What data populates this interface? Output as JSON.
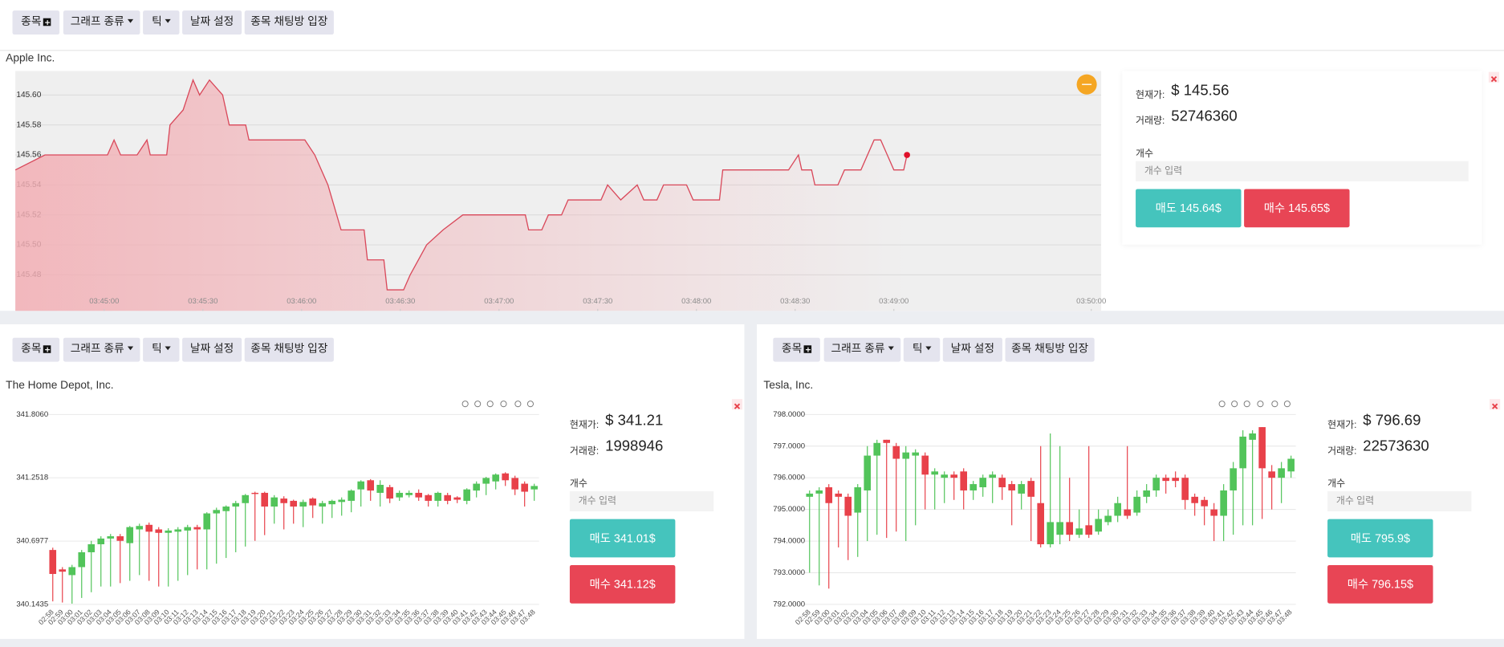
{
  "toolbar": [
    "종목",
    "그래프 종류",
    "틱",
    "날짜 설정",
    "종목 채팅방 입장"
  ],
  "panels": [
    {
      "name": "Apple Inc.",
      "info": {
        "price_label": "현재가:",
        "price": "$ 145.56",
        "volume_label": "거래량:",
        "volume": 52746360,
        "qty_label": "개수",
        "qty_placeholder": "개수 입력",
        "sell": "매도 145.64$",
        "buy": "매수 145.65$"
      }
    },
    {
      "name": "The Home Depot, Inc.",
      "info": {
        "price_label": "현재가:",
        "price": "$ 341.21",
        "volume_label": "거래량:",
        "volume": 1998946,
        "qty_label": "개수",
        "qty_placeholder": "개수 입력",
        "sell": "매도 341.01$",
        "buy": "매수 341.12$"
      }
    },
    {
      "name": "Tesla, Inc.",
      "info": {
        "price_label": "현재가:",
        "price": "$ 796.69",
        "volume_label": "거래량:",
        "volume": 22573630,
        "qty_label": "개수",
        "qty_placeholder": "개수 입력",
        "sell": "매도 795.9$",
        "buy": "매수 796.15$"
      }
    }
  ],
  "chart_data": [
    {
      "type": "line",
      "color": "#d9485a",
      "fill_color": "#f2aeb4",
      "grid": true,
      "x": [
        "03:44:33",
        "03:44:42",
        "03:45:01",
        "03:45:03",
        "03:45:05",
        "03:45:10",
        "03:45:13",
        "03:45:14",
        "03:45:19",
        "03:45:20",
        "03:45:24",
        "03:45:27",
        "03:45:29",
        "03:45:32",
        "03:45:36",
        "03:45:38",
        "03:45:43",
        "03:45:44",
        "03:46:01",
        "03:46:04",
        "03:46:08",
        "03:46:12",
        "03:46:19",
        "03:46:20",
        "03:46:25",
        "03:46:26",
        "03:46:31",
        "03:46:33",
        "03:46:38",
        "03:46:43",
        "03:46:49",
        "03:47:08",
        "03:47:09",
        "03:47:13",
        "03:47:15",
        "03:47:19",
        "03:47:21",
        "03:47:31",
        "03:47:33",
        "03:47:37",
        "03:47:42",
        "03:47:44",
        "03:47:48",
        "03:47:50",
        "03:47:57",
        "03:47:59",
        "03:48:07",
        "03:48:08",
        "03:48:28",
        "03:48:31",
        "03:48:32",
        "03:48:35",
        "03:48:36",
        "03:48:43",
        "03:48:45",
        "03:48:50",
        "03:48:54",
        "03:48:56",
        "03:48:58",
        "03:49:00",
        "03:49:03",
        "03:49:04"
      ],
      "values": [
        145.55,
        145.56,
        145.56,
        145.57,
        145.56,
        145.56,
        145.57,
        145.56,
        145.56,
        145.58,
        145.59,
        145.61,
        145.6,
        145.61,
        145.6,
        145.58,
        145.58,
        145.57,
        145.57,
        145.56,
        145.54,
        145.51,
        145.51,
        145.49,
        145.49,
        145.47,
        145.47,
        145.48,
        145.5,
        145.51,
        145.52,
        145.52,
        145.51,
        145.51,
        145.52,
        145.52,
        145.53,
        145.53,
        145.54,
        145.53,
        145.54,
        145.53,
        145.53,
        145.54,
        145.54,
        145.53,
        145.53,
        145.55,
        145.55,
        145.56,
        145.55,
        145.55,
        145.54,
        145.54,
        145.55,
        145.55,
        145.57,
        145.57,
        145.56,
        145.55,
        145.55,
        145.56
      ],
      "xlim": [
        "03:44:33",
        "03:50:03"
      ],
      "xticks": [
        "03:45:00",
        "03:45:30",
        "03:46:00",
        "03:46:30",
        "03:47:00",
        "03:47:30",
        "03:48:00",
        "03:48:30",
        "03:49:00",
        "03:50:00"
      ],
      "ylim": [
        145.456,
        145.616
      ],
      "yticks": [
        145.48,
        {
          "value": 145.5,
          "label": "145.50"
        },
        145.52,
        145.54,
        145.56,
        145.58,
        {
          "value": 145.6,
          "label": "145.60"
        }
      ]
    },
    {
      "type": "candlestick",
      "up_color": "#52c45a",
      "down_color": "#e8414a",
      "grid": true,
      "categories": [
        "02:58",
        "02:59",
        "03:00",
        "03:01",
        "03:02",
        "03:03",
        "03:04",
        "03:05",
        "03:06",
        "03:07",
        "03:08",
        "03:09",
        "03:10",
        "03:11",
        "03:12",
        "03:13",
        "03:14",
        "03:15",
        "03:16",
        "03:17",
        "03:18",
        "03:19",
        "03:20",
        "03:21",
        "03:22",
        "03:23",
        "03:24",
        "03:25",
        "03:26",
        "03:27",
        "03:28",
        "03:29",
        "03:30",
        "03:31",
        "03:32",
        "03:33",
        "03:34",
        "03:35",
        "03:36",
        "03:37",
        "03:38",
        "03:39",
        "03:40",
        "03:41",
        "03:42",
        "03:43",
        "03:44",
        "03:45",
        "03:46",
        "03:47",
        "03:48"
      ],
      "open": [
        340.62,
        340.45,
        340.4,
        340.47,
        340.6,
        340.67,
        340.72,
        340.74,
        340.68,
        340.8,
        340.84,
        340.8,
        340.77,
        340.78,
        340.79,
        340.82,
        340.8,
        340.94,
        340.96,
        341.0,
        341.03,
        341.12,
        341.12,
        341.0,
        341.07,
        341.05,
        341.0,
        341.07,
        341.0,
        341.02,
        341.04,
        341.05,
        341.15,
        341.23,
        341.12,
        341.17,
        341.08,
        341.1,
        341.12,
        341.1,
        341.05,
        341.1,
        341.08,
        341.05,
        341.14,
        341.2,
        341.22,
        341.29,
        341.25,
        341.2,
        341.15
      ],
      "close": [
        340.41,
        340.43,
        340.47,
        340.6,
        340.67,
        340.72,
        340.74,
        340.7,
        340.82,
        340.83,
        340.78,
        340.77,
        340.79,
        340.8,
        340.82,
        340.8,
        340.94,
        340.97,
        341.0,
        341.03,
        341.1,
        341.11,
        341.0,
        341.08,
        341.03,
        341.0,
        341.04,
        341.01,
        341.03,
        341.05,
        341.06,
        341.14,
        341.22,
        341.14,
        341.19,
        341.07,
        341.12,
        341.12,
        341.08,
        341.05,
        341.12,
        341.05,
        341.06,
        341.15,
        341.2,
        341.25,
        341.28,
        341.23,
        341.15,
        341.13,
        341.18
      ],
      "high": [
        340.64,
        340.47,
        340.49,
        340.62,
        340.7,
        340.74,
        340.76,
        340.76,
        340.83,
        340.85,
        340.86,
        340.82,
        340.81,
        340.82,
        340.84,
        340.84,
        340.95,
        340.99,
        341.01,
        341.05,
        341.11,
        341.13,
        341.13,
        341.1,
        341.09,
        341.06,
        341.06,
        341.08,
        341.05,
        341.06,
        341.08,
        341.15,
        341.23,
        341.24,
        341.23,
        341.19,
        341.14,
        341.14,
        341.15,
        341.11,
        341.13,
        341.12,
        341.09,
        341.16,
        341.22,
        341.26,
        341.29,
        341.3,
        341.27,
        341.22,
        341.2
      ],
      "low": [
        340.17,
        340.16,
        340.15,
        340.2,
        340.25,
        340.3,
        340.3,
        340.33,
        340.35,
        340.4,
        340.35,
        340.3,
        340.3,
        340.35,
        340.4,
        340.45,
        340.45,
        340.5,
        340.55,
        340.6,
        340.65,
        340.7,
        340.75,
        340.85,
        340.8,
        340.85,
        340.82,
        340.9,
        340.85,
        340.9,
        340.92,
        340.95,
        341.0,
        341.05,
        341.0,
        341.03,
        341.05,
        341.08,
        341.05,
        341.0,
        341.0,
        341.02,
        341.03,
        341.02,
        341.08,
        341.1,
        341.15,
        341.18,
        341.1,
        341.0,
        341.05
      ],
      "ylim": [
        340.1435,
        341.806
      ],
      "yticks": [
        340.1435,
        340.6977,
        341.2518,
        {
          "value": 341.806,
          "label": "341.8060"
        }
      ]
    },
    {
      "type": "candlestick",
      "up_color": "#52c45a",
      "down_color": "#e8414a",
      "grid": true,
      "categories": [
        "02:58",
        "02:59",
        "03:00",
        "03:01",
        "03:02",
        "03:03",
        "03:04",
        "03:05",
        "03:06",
        "03:07",
        "03:08",
        "03:09",
        "03:10",
        "03:11",
        "03:12",
        "03:13",
        "03:14",
        "03:15",
        "03:16",
        "03:17",
        "03:18",
        "03:19",
        "03:20",
        "03:21",
        "03:22",
        "03:23",
        "03:24",
        "03:25",
        "03:26",
        "03:27",
        "03:28",
        "03:29",
        "03:30",
        "03:31",
        "03:32",
        "03:33",
        "03:34",
        "03:35",
        "03:36",
        "03:37",
        "03:38",
        "03:39",
        "03:40",
        "03:41",
        "03:42",
        "03:43",
        "03:44",
        "03:45",
        "03:46",
        "03:47",
        "03:48"
      ],
      "open": [
        795.4,
        795.5,
        795.7,
        795.5,
        795.4,
        794.9,
        795.6,
        796.7,
        797.2,
        797.0,
        796.6,
        796.7,
        796.7,
        796.1,
        796.0,
        796.1,
        796.2,
        795.6,
        795.7,
        796.0,
        796.0,
        795.8,
        795.5,
        795.9,
        795.2,
        793.9,
        794.2,
        794.6,
        794.2,
        794.5,
        794.3,
        794.6,
        794.8,
        795.0,
        794.9,
        795.4,
        795.6,
        796.0,
        796.0,
        796.0,
        795.4,
        795.3,
        795.0,
        794.8,
        795.6,
        796.3,
        797.2,
        797.6,
        796.2,
        796.0,
        796.2
      ],
      "close": [
        795.5,
        795.6,
        795.2,
        795.4,
        794.8,
        795.7,
        796.7,
        797.1,
        797.1,
        796.6,
        796.8,
        796.8,
        796.1,
        796.2,
        796.1,
        796.0,
        795.6,
        795.8,
        796.0,
        796.1,
        795.7,
        795.6,
        795.8,
        795.4,
        793.9,
        794.6,
        794.6,
        794.2,
        794.4,
        794.2,
        794.7,
        794.8,
        795.2,
        794.8,
        795.4,
        795.6,
        796.0,
        795.9,
        795.9,
        795.3,
        795.2,
        795.1,
        794.8,
        795.6,
        796.3,
        797.3,
        797.4,
        796.3,
        796.0,
        796.3,
        796.6
      ],
      "high": [
        795.6,
        795.7,
        795.8,
        795.6,
        795.5,
        795.8,
        797.0,
        797.2,
        797.2,
        797.1,
        797.0,
        796.9,
        796.8,
        796.3,
        796.2,
        796.2,
        796.3,
        795.9,
        796.1,
        796.2,
        796.1,
        795.9,
        795.9,
        796.0,
        797.0,
        797.4,
        797.0,
        796.0,
        795.0,
        797.0,
        795.0,
        795.0,
        795.4,
        797.0,
        795.6,
        795.8,
        796.1,
        796.1,
        796.2,
        796.1,
        795.5,
        795.4,
        795.2,
        795.8,
        796.5,
        797.5,
        797.5,
        797.6,
        796.4,
        796.5,
        796.7
      ],
      "low": [
        793.0,
        792.6,
        792.5,
        793.8,
        793.4,
        793.5,
        794.0,
        794.2,
        794.1,
        794.3,
        794.0,
        794.5,
        795.0,
        795.0,
        795.2,
        795.3,
        795.0,
        795.3,
        795.4,
        795.2,
        795.3,
        794.5,
        795.0,
        794.0,
        793.8,
        793.8,
        793.9,
        794.0,
        794.1,
        794.1,
        794.2,
        794.5,
        794.6,
        794.7,
        794.8,
        795.2,
        795.4,
        795.5,
        795.7,
        795.0,
        794.8,
        794.5,
        794.0,
        794.0,
        794.2,
        794.5,
        794.5,
        794.7,
        795.0,
        795.2,
        796.0
      ],
      "ylim": [
        792,
        798
      ],
      "yticks": [
        {
          "value": 792,
          "label": "792.0000"
        },
        {
          "value": 793,
          "label": "793.0000"
        },
        {
          "value": 794,
          "label": "794.0000"
        },
        {
          "value": 795,
          "label": "795.0000"
        },
        {
          "value": 796,
          "label": "796.0000"
        },
        {
          "value": 797,
          "label": "797.0000"
        },
        {
          "value": 798,
          "label": "798.0000"
        }
      ]
    }
  ]
}
